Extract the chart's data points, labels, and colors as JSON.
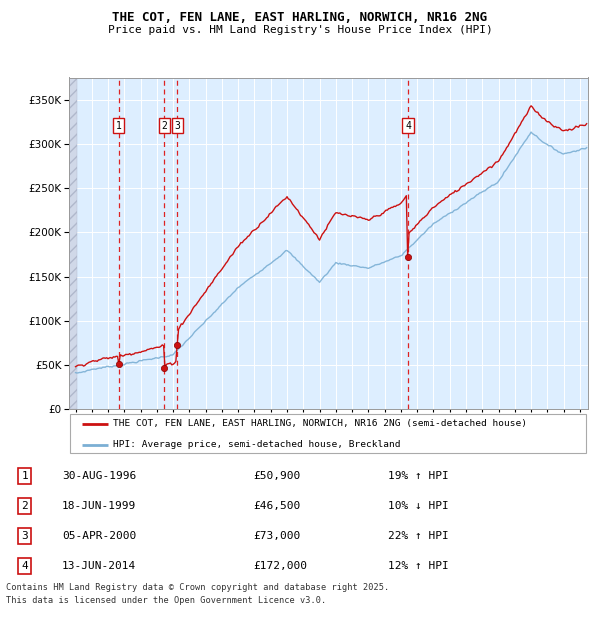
{
  "title1": "THE COT, FEN LANE, EAST HARLING, NORWICH, NR16 2NG",
  "title2": "Price paid vs. HM Land Registry's House Price Index (HPI)",
  "legend_line1": "THE COT, FEN LANE, EAST HARLING, NORWICH, NR16 2NG (semi-detached house)",
  "legend_line2": "HPI: Average price, semi-detached house, Breckland",
  "footer1": "Contains HM Land Registry data © Crown copyright and database right 2025.",
  "footer2": "This data is licensed under the Open Government Licence v3.0.",
  "transactions": [
    {
      "num": 1,
      "date": "30-AUG-1996",
      "price": 50900,
      "pct": "19% ↑ HPI",
      "year": 1996.66
    },
    {
      "num": 2,
      "date": "18-JUN-1999",
      "price": 46500,
      "pct": "10% ↓ HPI",
      "year": 1999.46
    },
    {
      "num": 3,
      "date": "05-APR-2000",
      "price": 73000,
      "pct": "22% ↑ HPI",
      "year": 2000.26
    },
    {
      "num": 4,
      "date": "13-JUN-2014",
      "price": 172000,
      "pct": "12% ↑ HPI",
      "year": 2014.44
    }
  ],
  "hpi_color": "#7bafd4",
  "price_color": "#cc1111",
  "background_plot": "#ddeeff",
  "ylim": [
    0,
    375000
  ],
  "yticks": [
    0,
    50000,
    100000,
    150000,
    200000,
    250000,
    300000,
    350000
  ],
  "xlim_start": 1993.6,
  "xlim_end": 2025.5,
  "xticks": [
    1994,
    1995,
    1996,
    1997,
    1998,
    1999,
    2000,
    2001,
    2002,
    2003,
    2004,
    2005,
    2006,
    2007,
    2008,
    2009,
    2010,
    2011,
    2012,
    2013,
    2014,
    2015,
    2016,
    2017,
    2018,
    2019,
    2020,
    2021,
    2022,
    2023,
    2024,
    2025
  ]
}
